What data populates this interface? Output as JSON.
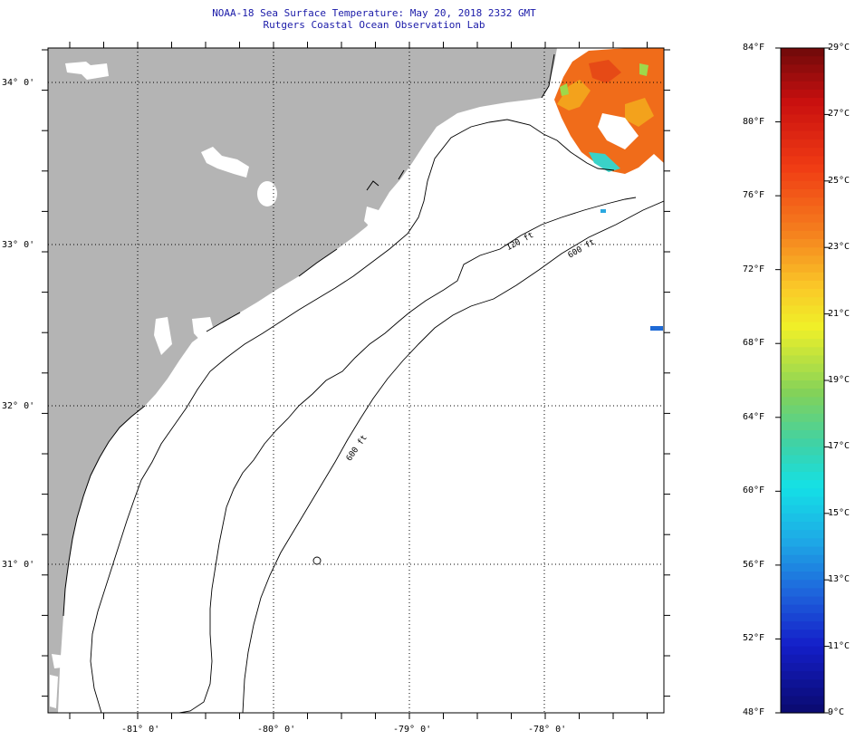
{
  "title": {
    "line1": "NOAA-18 Sea Surface Temperature:  May 20, 2018 2332 GMT",
    "line2": "Rutgers Coastal Ocean Observation Lab"
  },
  "map": {
    "lat_labels": [
      "34° 0'",
      "33° 0'",
      "32° 0'",
      "31° 0'"
    ],
    "lon_labels": [
      "-81° 0'",
      "-80° 0'",
      "-79° 0'",
      "-78° 0'"
    ],
    "contour_labels": [
      "120 ft",
      "600 ft",
      "600 ft"
    ],
    "colors": {
      "land": "#b4b4b4",
      "ocean": "#ffffff",
      "contour": "#000000",
      "grid": "#000000"
    }
  },
  "colorbar": {
    "fahrenheit_labels": [
      "84°F",
      "80°F",
      "76°F",
      "72°F",
      "68°F",
      "64°F",
      "60°F",
      "56°F",
      "52°F",
      "48°F"
    ],
    "celsius_labels": [
      "29°C",
      "27°C",
      "25°C",
      "23°C",
      "21°C",
      "19°C",
      "17°C",
      "15°C",
      "13°C",
      "11°C",
      "9°C"
    ]
  }
}
